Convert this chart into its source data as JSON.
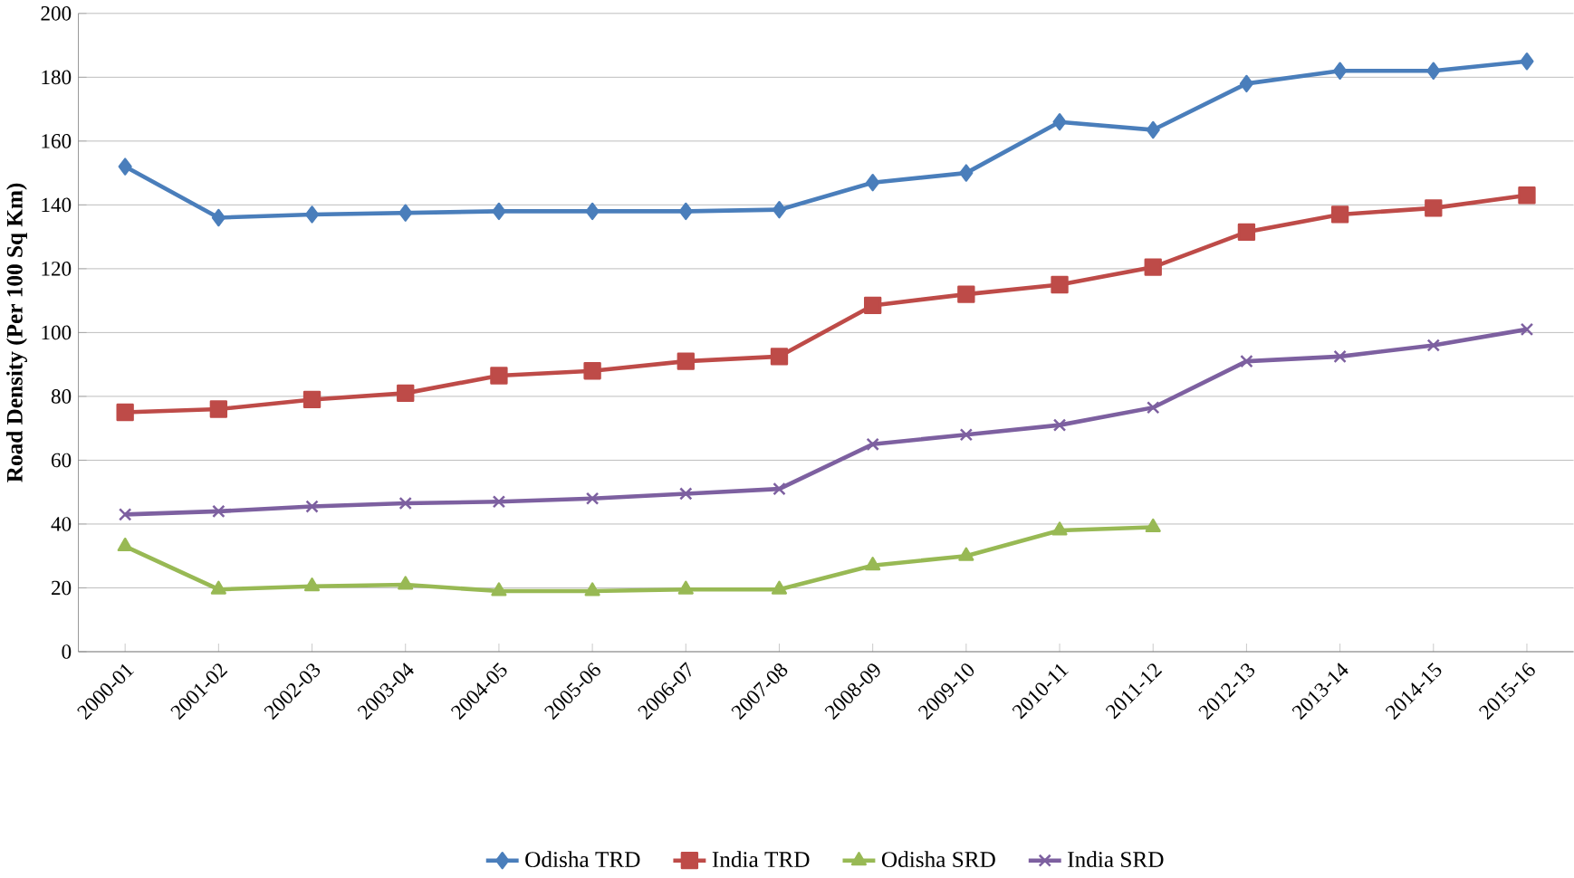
{
  "chart_data": {
    "type": "line",
    "ylabel": "Road Density (Per 100 Sq Km)",
    "categories": [
      "2000-01",
      "2001-02",
      "2002-03",
      "2003-04",
      "2004-05",
      "2005-06",
      "2006-07",
      "2007-08",
      "2008-09",
      "2009-10",
      "2010-11",
      "2011-12",
      "2012-13",
      "2013-14",
      "2014-15",
      "2015-16"
    ],
    "series": [
      {
        "name": "Odisha TRD",
        "color": "#4a7ebb",
        "marker": "diamond",
        "values": [
          152,
          136,
          137,
          137.5,
          138,
          138,
          138,
          138.5,
          147,
          150,
          166,
          163.5,
          178,
          182,
          182,
          185
        ]
      },
      {
        "name": "India TRD",
        "color": "#be4b48",
        "marker": "square",
        "values": [
          75,
          76,
          79,
          81,
          86.5,
          88,
          91,
          92.5,
          108.5,
          112,
          115,
          120.5,
          131.5,
          137,
          139,
          143
        ]
      },
      {
        "name": "Odisha SRD",
        "color": "#98b954",
        "marker": "triangle",
        "values": [
          33,
          19.5,
          20.5,
          21,
          19,
          19,
          19.5,
          19.5,
          27,
          30,
          38,
          39,
          null,
          null,
          null,
          null
        ]
      },
      {
        "name": "India SRD",
        "color": "#7d60a0",
        "marker": "cross",
        "values": [
          43,
          44,
          45.5,
          46.5,
          47,
          48,
          49.5,
          51,
          65,
          68,
          71,
          76.5,
          91,
          92.5,
          96,
          101
        ]
      }
    ],
    "ylim": [
      0,
      200
    ],
    "yticks": [
      0,
      20,
      40,
      60,
      80,
      100,
      120,
      140,
      160,
      180,
      200
    ],
    "grid": "y",
    "legend": "bottom",
    "line_style": "solid"
  }
}
